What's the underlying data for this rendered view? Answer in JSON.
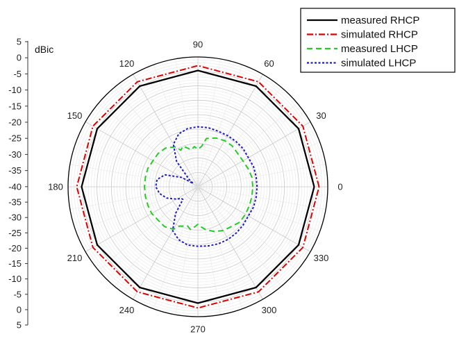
{
  "chart_data": {
    "type": "polar-line",
    "unit_label": "dBic",
    "radial_axis": {
      "min": -40,
      "max": 5,
      "major_step": 5,
      "tick_labels_top": [
        "5",
        "0",
        "-5",
        "-10",
        "-15",
        "-20",
        "-25",
        "-30",
        "-35",
        "-40"
      ],
      "tick_labels_bottom": [
        "-35",
        "-30",
        "-25",
        "-20",
        "-15",
        "-10",
        "-5",
        "0",
        "5"
      ]
    },
    "angular_axis": {
      "tick_labels": [
        "0",
        "30",
        "60",
        "90",
        "120",
        "150",
        "180",
        "210",
        "240",
        "270",
        "300",
        "330"
      ],
      "angles_deg": [
        0,
        30,
        60,
        90,
        120,
        150,
        180,
        210,
        240,
        270,
        300,
        330
      ],
      "minor_step_deg": 10
    },
    "grid": true,
    "legend": {
      "position": "top-right",
      "entries": [
        {
          "label": "measured RHCP",
          "color": "#000000",
          "dash": "solid"
        },
        {
          "label": "simulated RHCP",
          "color": "#dd0000",
          "dash": "dashdot"
        },
        {
          "label": "measured LHCP",
          "color": "#22cc22",
          "dash": "dash"
        },
        {
          "label": "simulated LHCP",
          "color": "#1a1acc",
          "dash": "dot"
        }
      ]
    },
    "series": [
      {
        "name": "measured RHCP",
        "theta_deg": [
          0,
          30,
          60,
          90,
          120,
          150,
          180,
          210,
          240,
          270,
          300,
          330,
          360
        ],
        "r_dBic": [
          0.3,
          0.3,
          0.3,
          0.3,
          0.3,
          0.3,
          0.3,
          0.3,
          0.3,
          0.3,
          0.3,
          0.3,
          0.3
        ]
      },
      {
        "name": "simulated RHCP",
        "theta_deg": [
          0,
          30,
          60,
          90,
          120,
          150,
          180,
          210,
          240,
          270,
          300,
          330,
          360
        ],
        "r_dBic": [
          2,
          2,
          2,
          2,
          2,
          2,
          2,
          2,
          2,
          2,
          2,
          2,
          2
        ]
      },
      {
        "name": "measured LHCP",
        "theta_deg": [
          0,
          10,
          20,
          30,
          40,
          50,
          60,
          70,
          80,
          85,
          90,
          95,
          100,
          110,
          115,
          120,
          130,
          140,
          150,
          160,
          170,
          180,
          190,
          200,
          210,
          220,
          230,
          240,
          245,
          250,
          255,
          260,
          265,
          270,
          275,
          280,
          290,
          300,
          310,
          320,
          330,
          340,
          350,
          360
        ],
        "r_dBic": [
          -21,
          -21,
          -21.5,
          -22,
          -22,
          -21.5,
          -21.5,
          -22,
          -23,
          -26,
          -27,
          -26,
          -27,
          -25,
          -26,
          -24,
          -22.5,
          -22,
          -22,
          -21.5,
          -21.5,
          -21.5,
          -21.5,
          -21.5,
          -21.5,
          -22,
          -22,
          -23,
          -25,
          -25.5,
          -26,
          -25,
          -26,
          -27,
          -26,
          -25,
          -23.5,
          -22.5,
          -22,
          -21,
          -21,
          -21,
          -21,
          -21
        ]
      },
      {
        "name": "simulated LHCP",
        "theta_deg": [
          0,
          10,
          20,
          30,
          40,
          50,
          60,
          70,
          80,
          90,
          100,
          110,
          120,
          130,
          140,
          145,
          150,
          160,
          170,
          180,
          190,
          200,
          210,
          215,
          220,
          230,
          240,
          250,
          260,
          270,
          280,
          290,
          300,
          310,
          320,
          330,
          340,
          350,
          360
        ],
        "r_dBic": [
          -19.5,
          -19.5,
          -19.5,
          -19.8,
          -19.5,
          -19.5,
          -19.5,
          -19.5,
          -19.2,
          -19.2,
          -19.5,
          -20.5,
          -23,
          -28.5,
          -36,
          -38,
          -33.5,
          -27.8,
          -25.6,
          -25.4,
          -26.5,
          -28.5,
          -31.5,
          -33,
          -33.2,
          -28,
          -22.5,
          -20.5,
          -19.5,
          -19.4,
          -19.2,
          -19,
          -19,
          -19.2,
          -19.5,
          -19.8,
          -19.5,
          -19.5,
          -19.5
        ]
      }
    ]
  }
}
